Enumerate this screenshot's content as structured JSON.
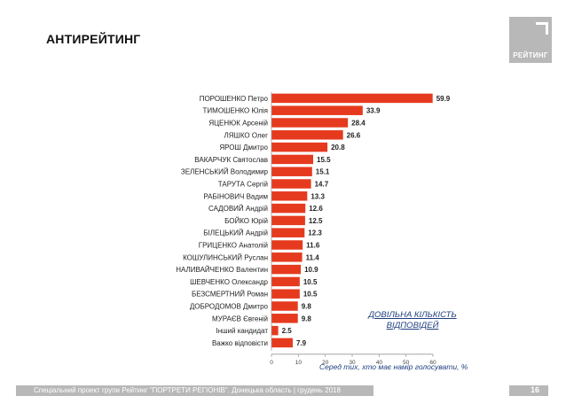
{
  "header": {
    "title": "АНТИРЕЙТИНГ",
    "logo_text": "РЕЙТИНГ"
  },
  "chart_data": {
    "type": "bar",
    "orientation": "horizontal",
    "categories": [
      "ПОРОШЕНКО Петро",
      "ТИМОШЕНКО Юлія",
      "ЯЦЕНЮК Арсеній",
      "ЛЯШКО Олег",
      "ЯРОШ Дмитро",
      "ВАКАРЧУК Святослав",
      "ЗЕЛЕНСЬКИЙ Володимир",
      "ТАРУТА Сергій",
      "РАБІНОВИЧ Вадим",
      "САДОВИЙ Андрій",
      "БОЙКО Юрій",
      "БІЛЕЦЬКИЙ Андрій",
      "ГРИЦЕНКО Анатолій",
      "КОШУЛИНСЬКИЙ Руслан",
      "НАЛИВАЙЧЕНКО Валентин",
      "ШЕВЧЕНКО Олександр",
      "БЕЗСМЕРТНИЙ Роман",
      "ДОБРОДОМОВ Дмитро",
      "МУРАЄВ Євгеній",
      "Інший кандидат",
      "Важко відповісти"
    ],
    "values": [
      59.9,
      33.9,
      28.4,
      26.6,
      20.8,
      15.5,
      15.1,
      14.7,
      13.3,
      12.6,
      12.5,
      12.3,
      11.6,
      11.4,
      10.9,
      10.5,
      10.5,
      9.8,
      9.8,
      2.5,
      7.9
    ],
    "value_labels": [
      "59.9",
      "33.9",
      "28.4",
      "26.6",
      "20.8",
      "15.5",
      "15.1",
      "14.7",
      "13.3",
      "12.6",
      "12.5",
      "12.3",
      "11.6",
      "11.4",
      "10.9",
      "10.5",
      "10.5",
      "9.8",
      "9.8",
      "2.5",
      "7.9"
    ],
    "xlim": [
      0,
      60
    ],
    "xticks": [
      "0",
      "10",
      "20",
      "30",
      "40",
      "50",
      "60"
    ],
    "xlabel": "Серед тих, хто має намір голосувати, %",
    "bar_color": "#e63a1e",
    "grid": false
  },
  "annotation": {
    "line1": "ДОВІЛЬНА КІЛЬКІСТЬ",
    "line2": "ВІДПОВІДЕЙ"
  },
  "footer": {
    "text": "Спеціальний проект групи Рейтинг \"ПОРТРЕТИ РЕГІОНІВ\". Донецька область | грудень 2018",
    "page": "16"
  }
}
